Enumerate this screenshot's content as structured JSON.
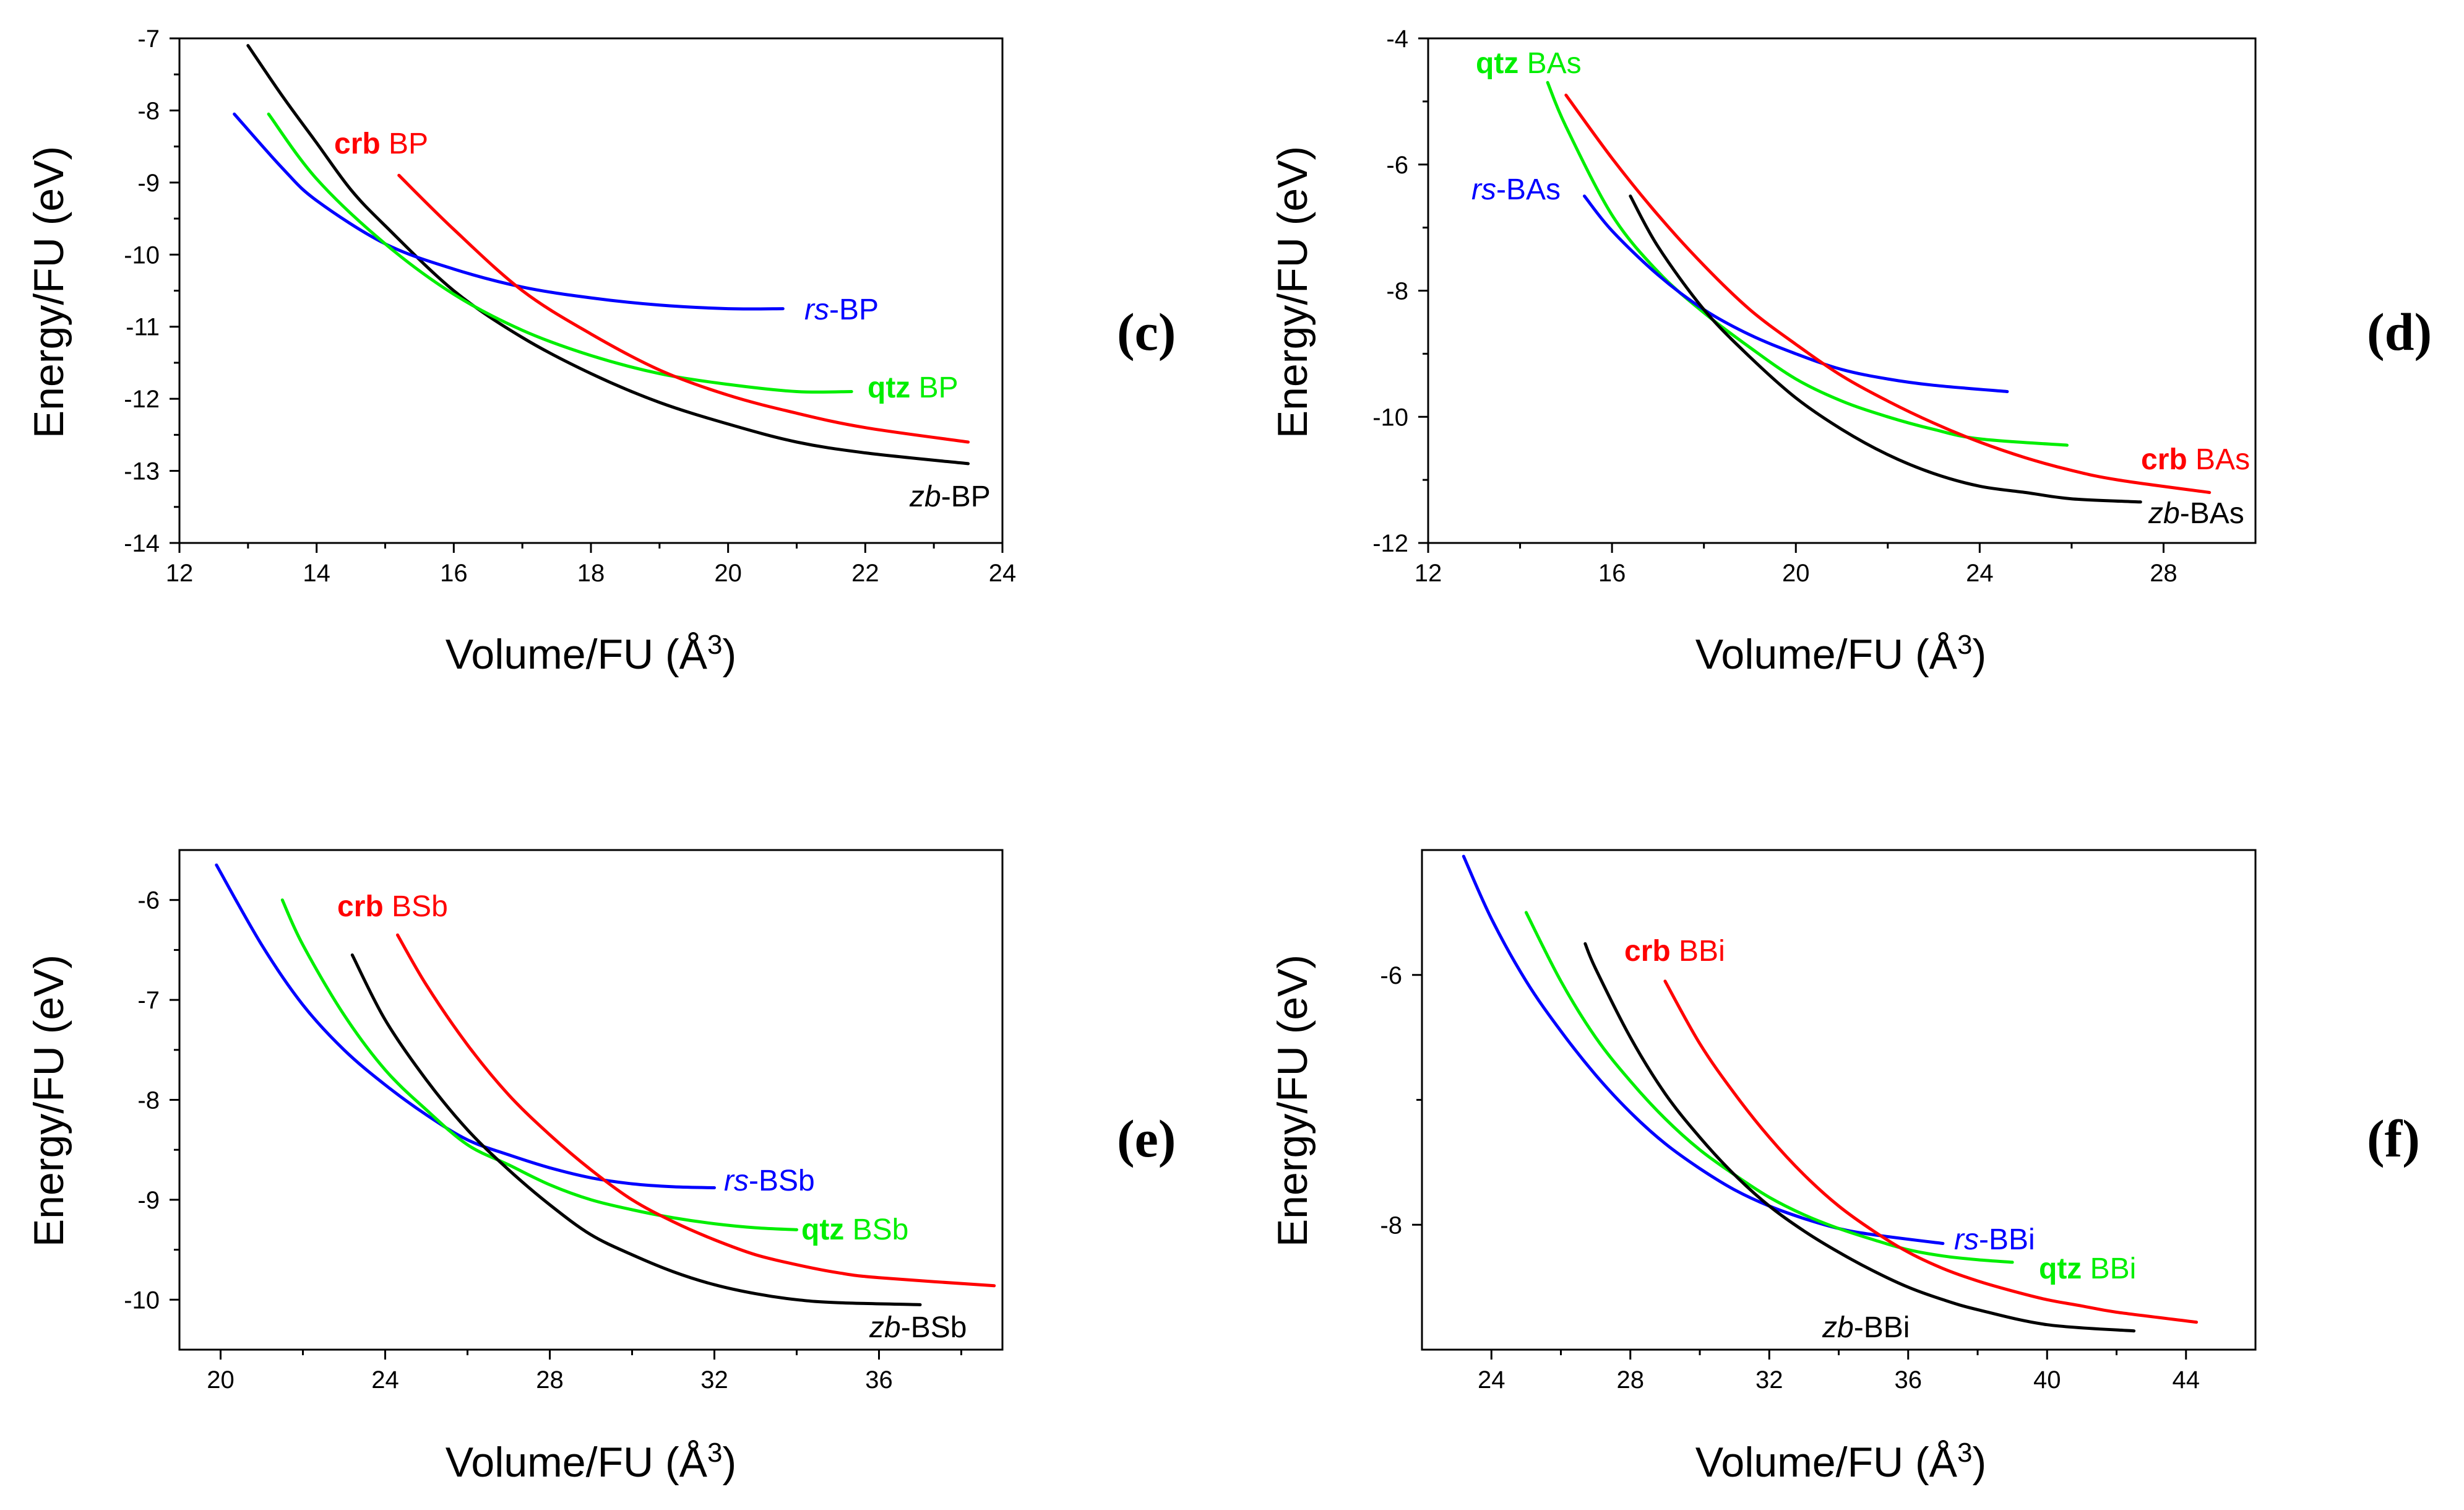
{
  "chart_data": [
    {
      "type": "line",
      "panel": "(c)",
      "xlabel": "Volume/FU (Å³)",
      "ylabel": "Energy/FU (eV)",
      "xlim": [
        12,
        24
      ],
      "ylim": [
        -14,
        -7
      ],
      "xticks": [
        12,
        14,
        16,
        18,
        20,
        22,
        24
      ],
      "yticks": [
        -14,
        -13,
        -12,
        -11,
        -10,
        -9,
        -8,
        -7
      ],
      "series": [
        {
          "name": "zb-BP",
          "color": "#000000",
          "prefix": "zb",
          "suffix": "-BP",
          "prefix_style": "italic",
          "x": [
            13.0,
            13.5,
            14.0,
            14.5,
            15.0,
            16.0,
            17.0,
            18.0,
            19.0,
            20.0,
            21.0,
            22.0,
            23.5
          ],
          "y": [
            -7.1,
            -7.8,
            -8.45,
            -9.1,
            -9.6,
            -10.5,
            -11.15,
            -11.65,
            -12.05,
            -12.35,
            -12.6,
            -12.75,
            -12.9
          ]
        },
        {
          "name": "rs-BP",
          "color": "#0000ff",
          "prefix": "rs",
          "suffix": "-BP",
          "prefix_style": "italic",
          "x": [
            12.8,
            13.5,
            14.0,
            15.0,
            16.0,
            17.0,
            18.0,
            19.0,
            20.0,
            20.8
          ],
          "y": [
            -8.05,
            -8.8,
            -9.25,
            -9.85,
            -10.2,
            -10.45,
            -10.6,
            -10.7,
            -10.75,
            -10.75
          ]
        },
        {
          "name": "qtz BP",
          "color": "#00ee00",
          "prefix": "qtz",
          "suffix": " BP",
          "prefix_style": "bold",
          "x": [
            13.3,
            14.0,
            15.0,
            16.0,
            17.0,
            18.0,
            19.0,
            20.0,
            21.0,
            21.8
          ],
          "y": [
            -8.05,
            -8.95,
            -9.85,
            -10.55,
            -11.05,
            -11.4,
            -11.65,
            -11.8,
            -11.9,
            -11.9
          ]
        },
        {
          "name": "crb BP",
          "color": "#ff0000",
          "prefix": "crb",
          "suffix": " BP",
          "prefix_style": "bold",
          "x": [
            15.2,
            16.0,
            17.0,
            18.0,
            19.0,
            20.0,
            21.0,
            22.0,
            23.5
          ],
          "y": [
            -8.9,
            -9.65,
            -10.5,
            -11.1,
            -11.6,
            -11.95,
            -12.2,
            -12.4,
            -12.6
          ]
        }
      ],
      "labels": {
        "crb": "crb",
        "crb_name": " BP",
        "rs": "rs",
        "rs_name": "-BP",
        "qtz": "qtz",
        "qtz_name": " BP",
        "zb": "zb",
        "zb_name": "-BP"
      }
    },
    {
      "type": "line",
      "panel": "(d)",
      "xlabel": "Volume/FU (Å³)",
      "ylabel": "Energy/FU (eV)",
      "xlim": [
        12,
        30
      ],
      "ylim": [
        -12,
        -4
      ],
      "xticks": [
        12,
        16,
        20,
        24,
        28
      ],
      "yticks": [
        -12,
        -10,
        -8,
        -6,
        -4
      ],
      "series": [
        {
          "name": "qtz BAs",
          "color": "#00ee00",
          "x": [
            14.6,
            15.0,
            16.0,
            17.0,
            18.0,
            19.0,
            20.0,
            21.0,
            22.0,
            23.0,
            24.0,
            25.9
          ],
          "y": [
            -4.7,
            -5.4,
            -6.8,
            -7.7,
            -8.35,
            -8.9,
            -9.4,
            -9.75,
            -10.0,
            -10.2,
            -10.35,
            -10.45
          ]
        },
        {
          "name": "rs-BAs",
          "color": "#0000ff",
          "x": [
            15.4,
            16.0,
            17.0,
            18.0,
            19.0,
            20.0,
            21.0,
            22.0,
            23.0,
            24.6
          ],
          "y": [
            -6.5,
            -7.05,
            -7.75,
            -8.3,
            -8.7,
            -9.0,
            -9.25,
            -9.4,
            -9.5,
            -9.6
          ]
        },
        {
          "name": "zb-BAs",
          "color": "#000000",
          "x": [
            16.4,
            17.0,
            18.0,
            19.0,
            20.0,
            21.0,
            22.0,
            23.0,
            24.0,
            25.0,
            26.0,
            27.5
          ],
          "y": [
            -6.5,
            -7.3,
            -8.3,
            -9.05,
            -9.7,
            -10.2,
            -10.6,
            -10.9,
            -11.1,
            -11.2,
            -11.3,
            -11.35
          ]
        },
        {
          "name": "crb BAs",
          "color": "#ff0000",
          "x": [
            15.0,
            16.0,
            17.0,
            18.0,
            19.0,
            20.0,
            21.0,
            22.0,
            23.0,
            24.0,
            25.0,
            26.0,
            27.0,
            29.0
          ],
          "y": [
            -4.9,
            -5.9,
            -6.8,
            -7.6,
            -8.3,
            -8.85,
            -9.35,
            -9.75,
            -10.1,
            -10.4,
            -10.65,
            -10.85,
            -11.0,
            -11.2
          ]
        }
      ],
      "labels": {
        "qtz": "qtz",
        "qtz_name": " BAs",
        "rs": "rs",
        "rs_name": "-BAs",
        "crb": "crb",
        "crb_name": " BAs",
        "zb": "zb",
        "zb_name": "-BAs"
      }
    },
    {
      "type": "line",
      "panel": "(e)",
      "xlabel": "Volume/FU (Å³)",
      "ylabel": "Energy/FU (eV)",
      "xlim": [
        19,
        39
      ],
      "ylim": [
        -10.5,
        -5.5
      ],
      "xticks": [
        20,
        24,
        28,
        32,
        36
      ],
      "yticks": [
        -10,
        -9,
        -8,
        -7,
        -6
      ],
      "series": [
        {
          "name": "rs-BSb",
          "color": "#0000ff",
          "x": [
            19.9,
            21.0,
            22.0,
            23.0,
            24.0,
            25.0,
            26.0,
            27.0,
            28.0,
            29.0,
            30.0,
            31.0,
            32.0
          ],
          "y": [
            -5.65,
            -6.45,
            -7.05,
            -7.5,
            -7.85,
            -8.15,
            -8.4,
            -8.55,
            -8.68,
            -8.78,
            -8.84,
            -8.87,
            -8.88
          ]
        },
        {
          "name": "qtz BSb",
          "color": "#00ee00",
          "x": [
            21.5,
            22.0,
            23.0,
            24.0,
            25.0,
            26.0,
            27.0,
            28.0,
            29.0,
            30.0,
            31.0,
            32.0,
            33.0,
            34.0
          ],
          "y": [
            -6.0,
            -6.45,
            -7.15,
            -7.7,
            -8.1,
            -8.45,
            -8.65,
            -8.85,
            -9.0,
            -9.1,
            -9.18,
            -9.24,
            -9.28,
            -9.3
          ]
        },
        {
          "name": "zb-BSb",
          "color": "#000000",
          "x": [
            23.2,
            24.0,
            25.0,
            26.0,
            27.0,
            28.0,
            29.0,
            30.0,
            31.0,
            32.0,
            33.0,
            34.0,
            35.0,
            37.0
          ],
          "y": [
            -6.55,
            -7.2,
            -7.8,
            -8.3,
            -8.7,
            -9.05,
            -9.35,
            -9.55,
            -9.72,
            -9.85,
            -9.94,
            -10.0,
            -10.03,
            -10.05
          ]
        },
        {
          "name": "crb BSb",
          "color": "#ff0000",
          "x": [
            24.3,
            25.0,
            26.0,
            27.0,
            28.0,
            29.0,
            30.0,
            31.0,
            32.0,
            33.0,
            34.0,
            35.0,
            36.0,
            38.8
          ],
          "y": [
            -6.35,
            -6.85,
            -7.45,
            -7.95,
            -8.35,
            -8.7,
            -9.0,
            -9.22,
            -9.4,
            -9.55,
            -9.65,
            -9.73,
            -9.78,
            -9.86
          ]
        }
      ],
      "labels": {
        "crb": "crb",
        "crb_name": " BSb",
        "rs": "rs",
        "rs_name": "-BSb",
        "qtz": "qtz",
        "qtz_name": " BSb",
        "zb": "zb",
        "zb_name": "-BSb"
      }
    },
    {
      "type": "line",
      "panel": "(f)",
      "xlabel": "Volume/FU (Å³)",
      "ylabel": "Energy/FU (eV)",
      "xlim": [
        22,
        46
      ],
      "ylim": [
        -9,
        -5
      ],
      "xticks": [
        24,
        28,
        32,
        36,
        40,
        44
      ],
      "yticks": [
        -8,
        -6
      ],
      "series": [
        {
          "name": "rs-BBi",
          "color": "#0000ff",
          "x": [
            23.2,
            24.0,
            25.0,
            26.0,
            27.0,
            28.0,
            29.0,
            30.0,
            31.0,
            32.0,
            33.0,
            34.0,
            35.0,
            37.0
          ],
          "y": [
            -5.05,
            -5.55,
            -6.05,
            -6.45,
            -6.8,
            -7.1,
            -7.35,
            -7.55,
            -7.72,
            -7.85,
            -7.95,
            -8.03,
            -8.08,
            -8.15
          ]
        },
        {
          "name": "qtz BBi",
          "color": "#00ee00",
          "x": [
            25.0,
            26.0,
            27.0,
            28.0,
            29.0,
            30.0,
            31.0,
            32.0,
            33.0,
            34.0,
            35.0,
            36.0,
            37.0,
            38.0,
            39.0
          ],
          "y": [
            -5.5,
            -6.05,
            -6.5,
            -6.85,
            -7.15,
            -7.4,
            -7.6,
            -7.78,
            -7.92,
            -8.03,
            -8.12,
            -8.2,
            -8.25,
            -8.28,
            -8.3
          ]
        },
        {
          "name": "zb-BBi",
          "color": "#000000",
          "x": [
            26.7,
            27.0,
            28.0,
            29.0,
            30.0,
            31.0,
            32.0,
            33.0,
            34.0,
            35.0,
            36.0,
            37.0,
            38.0,
            40.0,
            42.5
          ],
          "y": [
            -5.75,
            -5.95,
            -6.5,
            -6.95,
            -7.3,
            -7.6,
            -7.85,
            -8.05,
            -8.22,
            -8.37,
            -8.5,
            -8.6,
            -8.68,
            -8.8,
            -8.85
          ]
        },
        {
          "name": "crb BBi",
          "color": "#ff0000",
          "x": [
            29.0,
            30.0,
            31.0,
            32.0,
            33.0,
            34.0,
            35.0,
            36.0,
            37.0,
            38.0,
            39.0,
            40.0,
            41.0,
            42.0,
            44.3
          ],
          "y": [
            -6.05,
            -6.55,
            -6.95,
            -7.3,
            -7.6,
            -7.85,
            -8.05,
            -8.22,
            -8.35,
            -8.45,
            -8.53,
            -8.6,
            -8.65,
            -8.7,
            -8.78
          ]
        }
      ],
      "labels": {
        "crb": "crb",
        "crb_name": " BBi",
        "rs": "rs",
        "rs_name": "-BBi",
        "qtz": "qtz",
        "qtz_name": " BBi",
        "zb": "zb",
        "zb_name": "-BBi"
      }
    }
  ],
  "axis_titles": {
    "x_main": "Volume/FU (Å",
    "x_sup": "3",
    "x_close": ")",
    "y": "Energy/FU (eV)"
  }
}
